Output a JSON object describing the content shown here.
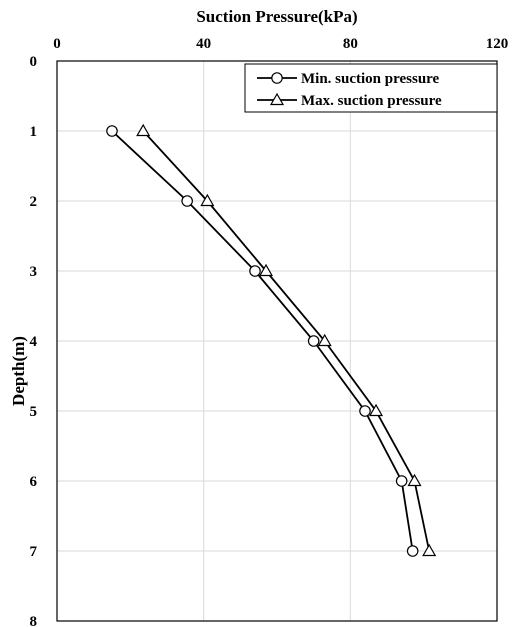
{
  "chart_data": {
    "type": "line",
    "title": "Suction Pressure(kPa)",
    "xlabel": "Suction Pressure(kPa)",
    "ylabel": "Depth(m)",
    "xlim": [
      0,
      120
    ],
    "ylim": [
      0,
      8
    ],
    "y_inverted": true,
    "x_axis_position": "top",
    "x_ticks": [
      0,
      40,
      80,
      120
    ],
    "y_ticks": [
      0,
      1,
      2,
      3,
      4,
      5,
      6,
      7,
      8
    ],
    "grid": true,
    "legend_position": "top-right",
    "series": [
      {
        "name": "Min. suction pressure",
        "marker": "circle",
        "points": [
          {
            "x": 15,
            "y": 1
          },
          {
            "x": 35.5,
            "y": 2
          },
          {
            "x": 54,
            "y": 3
          },
          {
            "x": 70,
            "y": 4
          },
          {
            "x": 84,
            "y": 5
          },
          {
            "x": 94,
            "y": 6
          },
          {
            "x": 97,
            "y": 7
          }
        ]
      },
      {
        "name": "Max. suction pressure",
        "marker": "triangle",
        "points": [
          {
            "x": 23.5,
            "y": 1
          },
          {
            "x": 41,
            "y": 2
          },
          {
            "x": 57,
            "y": 3
          },
          {
            "x": 73,
            "y": 4
          },
          {
            "x": 87,
            "y": 5
          },
          {
            "x": 97.5,
            "y": 6
          },
          {
            "x": 101.5,
            "y": 7
          }
        ]
      }
    ]
  }
}
